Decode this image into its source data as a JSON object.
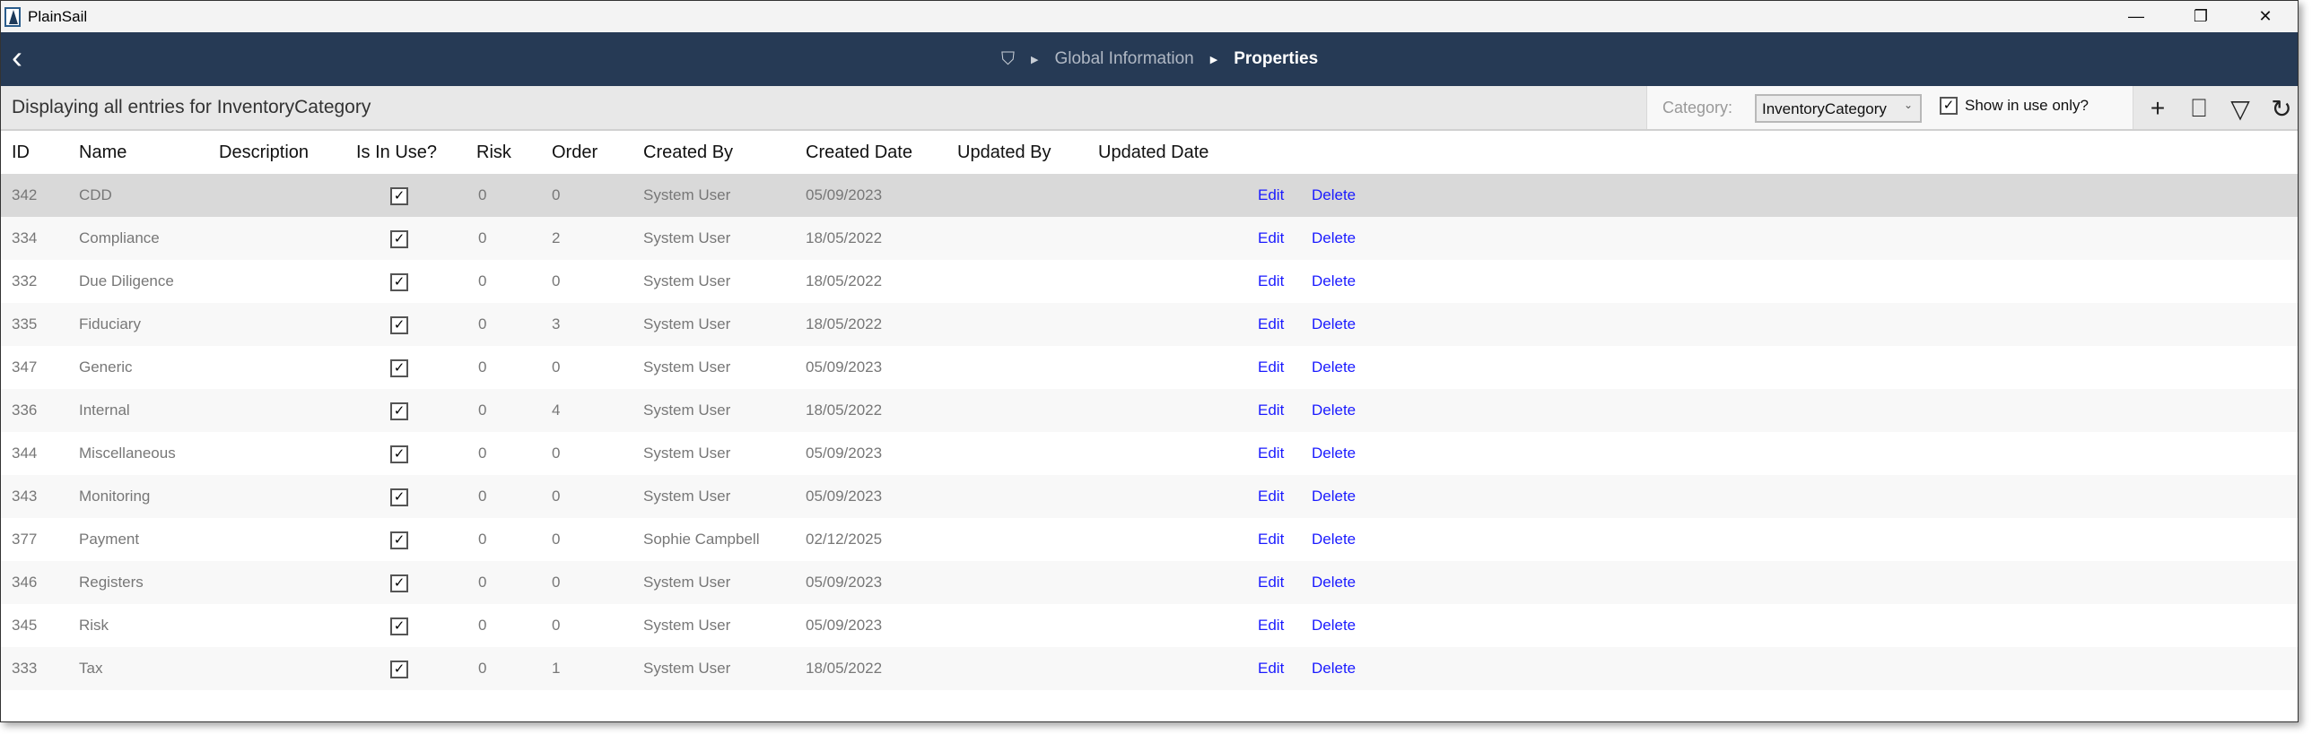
{
  "app": {
    "title": "PlainSail"
  },
  "window_controls": {
    "minimize": "—",
    "restore": "❐",
    "close": "✕"
  },
  "breadcrumb": {
    "items": [
      "Global Information",
      "Properties"
    ]
  },
  "toolbar": {
    "status": "Displaying all entries for InventoryCategory",
    "category_label": "Category:",
    "category_value": "InventoryCategory",
    "show_in_use_label": "Show in use only?",
    "show_in_use_checked": true
  },
  "table": {
    "headers": [
      "ID",
      "Name",
      "Description",
      "Is In Use?",
      "Risk",
      "Order",
      "Created By",
      "Created Date",
      "Updated By",
      "Updated Date"
    ],
    "edit_label": "Edit",
    "delete_label": "Delete",
    "rows": [
      {
        "id": "342",
        "name": "CDD",
        "description": "",
        "in_use": true,
        "risk": "0",
        "order": "0",
        "created_by": "System User",
        "created_date": "05/09/2023",
        "updated_by": "",
        "updated_date": ""
      },
      {
        "id": "334",
        "name": "Compliance",
        "description": "",
        "in_use": true,
        "risk": "0",
        "order": "2",
        "created_by": "System User",
        "created_date": "18/05/2022",
        "updated_by": "",
        "updated_date": ""
      },
      {
        "id": "332",
        "name": "Due Diligence",
        "description": "",
        "in_use": true,
        "risk": "0",
        "order": "0",
        "created_by": "System User",
        "created_date": "18/05/2022",
        "updated_by": "",
        "updated_date": ""
      },
      {
        "id": "335",
        "name": "Fiduciary",
        "description": "",
        "in_use": true,
        "risk": "0",
        "order": "3",
        "created_by": "System User",
        "created_date": "18/05/2022",
        "updated_by": "",
        "updated_date": ""
      },
      {
        "id": "347",
        "name": "Generic",
        "description": "",
        "in_use": true,
        "risk": "0",
        "order": "0",
        "created_by": "System User",
        "created_date": "05/09/2023",
        "updated_by": "",
        "updated_date": ""
      },
      {
        "id": "336",
        "name": "Internal",
        "description": "",
        "in_use": true,
        "risk": "0",
        "order": "4",
        "created_by": "System User",
        "created_date": "18/05/2022",
        "updated_by": "",
        "updated_date": ""
      },
      {
        "id": "344",
        "name": "Miscellaneous",
        "description": "",
        "in_use": true,
        "risk": "0",
        "order": "0",
        "created_by": "System User",
        "created_date": "05/09/2023",
        "updated_by": "",
        "updated_date": ""
      },
      {
        "id": "343",
        "name": "Monitoring",
        "description": "",
        "in_use": true,
        "risk": "0",
        "order": "0",
        "created_by": "System User",
        "created_date": "05/09/2023",
        "updated_by": "",
        "updated_date": ""
      },
      {
        "id": "377",
        "name": "Payment",
        "description": "",
        "in_use": true,
        "risk": "0",
        "order": "0",
        "created_by": "Sophie Campbell",
        "created_date": "02/12/2025",
        "updated_by": "",
        "updated_date": ""
      },
      {
        "id": "346",
        "name": "Registers",
        "description": "",
        "in_use": true,
        "risk": "0",
        "order": "0",
        "created_by": "System User",
        "created_date": "05/09/2023",
        "updated_by": "",
        "updated_date": ""
      },
      {
        "id": "345",
        "name": "Risk",
        "description": "",
        "in_use": true,
        "risk": "0",
        "order": "0",
        "created_by": "System User",
        "created_date": "05/09/2023",
        "updated_by": "",
        "updated_date": ""
      },
      {
        "id": "333",
        "name": "Tax",
        "description": "",
        "in_use": true,
        "risk": "0",
        "order": "1",
        "created_by": "System User",
        "created_date": "18/05/2022",
        "updated_by": "",
        "updated_date": ""
      }
    ]
  },
  "colors": {
    "navbar": "#263a55",
    "link": "#1a1aff",
    "selected_row": "#d9d9d9"
  }
}
